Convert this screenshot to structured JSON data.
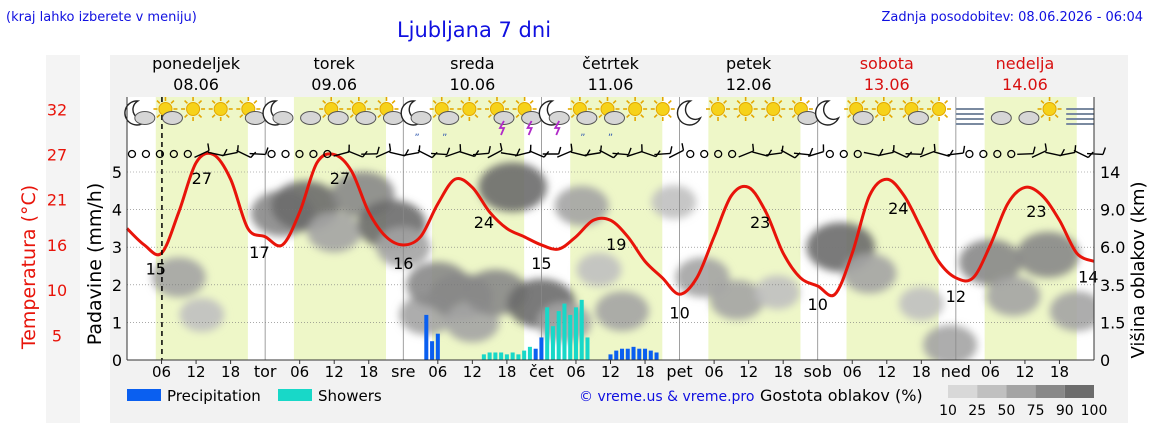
{
  "header": {
    "left_note": "(kraj lahko izberete v meniju)",
    "title": "Ljubljana 7 dni",
    "updated": "Zadnja posodobitev: 08.06.2026 - 06:04"
  },
  "days": [
    {
      "name": "ponedeljek",
      "date": "08.06",
      "weekend": false,
      "abbr": ""
    },
    {
      "name": "torek",
      "date": "09.06",
      "weekend": false,
      "abbr": "tor"
    },
    {
      "name": "sreda",
      "date": "10.06",
      "weekend": false,
      "abbr": "sre"
    },
    {
      "name": "četrtek",
      "date": "11.06",
      "weekend": false,
      "abbr": "čet"
    },
    {
      "name": "petek",
      "date": "12.06",
      "weekend": false,
      "abbr": "pet"
    },
    {
      "name": "sobota",
      "date": "13.06",
      "weekend": true,
      "abbr": "sob"
    },
    {
      "name": "nedelja",
      "date": "14.06",
      "weekend": true,
      "abbr": "ned"
    }
  ],
  "hour_ticks": [
    "06",
    "12",
    "18"
  ],
  "colors": {
    "temp": "#e8140a",
    "precip": "#0a5ff0",
    "showers": "#18d8c8",
    "day_band": "#eef7c8",
    "blue_text": "#1010e0",
    "weekend": "#d81010",
    "sun": "#f6d21a",
    "cloud": "#8a8a8a"
  },
  "icons": {
    "symbols": [
      "moon-cloud-icon",
      "sun-cloud-icon",
      "sun-icon",
      "sun-icon",
      "sun-cloud-icon",
      "moon-cloud-icon",
      "cloud-icon",
      "sun-cloud-icon",
      "sun-cloud-icon",
      "sun-cloud-icon",
      "moon-rain-icon",
      "sun-rain-icon",
      "sun-icon",
      "sun-storm-icon",
      "sun-storm-icon",
      "moon-storm-icon",
      "sun-rain-icon",
      "sun-rain-icon",
      "sun-icon",
      "sun-icon",
      "moon-icon",
      "sun-icon",
      "sun-icon",
      "sun-icon",
      "sun-cloud-icon",
      "moon-icon",
      "sun-cloud-icon",
      "sun-icon",
      "sun-cloud-icon",
      "sun-icon",
      "fog-icon",
      "cloud-icon",
      "cloud-icon",
      "sun-icon",
      "fog-icon"
    ],
    "wind": [
      "calm",
      "calm",
      "calm",
      "calm",
      "calm",
      "barb",
      "barb",
      "barb",
      "barb",
      "barb",
      "calm",
      "calm",
      "calm",
      "calm",
      "calm",
      "barb",
      "barb",
      "barb",
      "barb",
      "barb",
      "barb",
      "barb",
      "barb",
      "barb",
      "barb",
      "barb",
      "barb",
      "barb",
      "barb",
      "barb",
      "barb",
      "barb",
      "barb",
      "barb",
      "barb",
      "barb",
      "barb",
      "barb",
      "barb",
      "barb",
      "calm",
      "calm",
      "calm",
      "calm",
      "barb",
      "barb",
      "barb",
      "barb",
      "barb",
      "barb",
      "calm",
      "calm",
      "calm",
      "barb",
      "barb",
      "barb",
      "barb",
      "barb",
      "barb",
      "barb",
      "calm",
      "calm",
      "calm",
      "calm",
      "barb",
      "barb",
      "barb",
      "barb",
      "barb",
      "barb"
    ]
  },
  "chart_data": {
    "type": "line",
    "x_unit": "hours from 00:00 Monday 08.06.2026",
    "temperature_series": {
      "name": "",
      "x": [
        0,
        3,
        6,
        9,
        12,
        15,
        18,
        21,
        24,
        27,
        30,
        33,
        36,
        39,
        42,
        45,
        48,
        51,
        54,
        57,
        60,
        63,
        66,
        69,
        72,
        75,
        78,
        81,
        84,
        87,
        90,
        93,
        96,
        99,
        102,
        105,
        108,
        111,
        114,
        117,
        120,
        123,
        126,
        129,
        132,
        135,
        138,
        141,
        144,
        147,
        150,
        153,
        156,
        159,
        162,
        165,
        168
      ],
      "values": [
        18,
        16,
        15,
        20,
        26,
        27,
        24,
        18,
        17,
        16,
        20,
        26,
        27,
        25,
        20,
        17,
        16,
        17,
        21,
        24,
        23,
        20,
        18,
        17,
        16,
        15.5,
        17,
        19,
        19,
        17,
        14,
        12,
        10,
        12,
        17,
        22,
        23,
        20,
        15,
        12,
        11,
        10,
        15,
        22,
        24,
        22,
        18,
        14,
        12,
        12,
        16,
        21,
        23,
        22,
        19,
        15,
        14
      ],
      "labels": [
        {
          "x": 5,
          "text": "15"
        },
        {
          "x": 23,
          "text": "17"
        },
        {
          "x": 13,
          "text": "27"
        },
        {
          "x": 37,
          "text": "27"
        },
        {
          "x": 48,
          "text": "16"
        },
        {
          "x": 62,
          "text": "24"
        },
        {
          "x": 72,
          "text": "15"
        },
        {
          "x": 85,
          "text": "19"
        },
        {
          "x": 96,
          "text": "10"
        },
        {
          "x": 110,
          "text": "23"
        },
        {
          "x": 120,
          "text": "10"
        },
        {
          "x": 134,
          "text": "24"
        },
        {
          "x": 144,
          "text": "12"
        },
        {
          "x": 158,
          "text": "23"
        },
        {
          "x": 167,
          "text": "14"
        }
      ]
    },
    "precipitation": [
      {
        "x": 52,
        "value": 1.2,
        "type": "precipitation"
      },
      {
        "x": 53,
        "value": 0.5,
        "type": "precipitation"
      },
      {
        "x": 54,
        "value": 0.7,
        "type": "precipitation"
      },
      {
        "x": 62,
        "value": 0.15,
        "type": "showers"
      },
      {
        "x": 63,
        "value": 0.2,
        "type": "showers"
      },
      {
        "x": 64,
        "value": 0.2,
        "type": "showers"
      },
      {
        "x": 65,
        "value": 0.2,
        "type": "showers"
      },
      {
        "x": 66,
        "value": 0.15,
        "type": "showers"
      },
      {
        "x": 67,
        "value": 0.2,
        "type": "showers"
      },
      {
        "x": 68,
        "value": 0.15,
        "type": "showers"
      },
      {
        "x": 69,
        "value": 0.25,
        "type": "showers"
      },
      {
        "x": 70,
        "value": 0.35,
        "type": "showers"
      },
      {
        "x": 71,
        "value": 0.3,
        "type": "precipitation"
      },
      {
        "x": 72,
        "value": 0.6,
        "type": "precipitation"
      },
      {
        "x": 73,
        "value": 1.4,
        "type": "showers"
      },
      {
        "x": 74,
        "value": 0.9,
        "type": "showers"
      },
      {
        "x": 75,
        "value": 1.3,
        "type": "showers"
      },
      {
        "x": 76,
        "value": 1.5,
        "type": "showers"
      },
      {
        "x": 77,
        "value": 1.2,
        "type": "showers"
      },
      {
        "x": 78,
        "value": 1.4,
        "type": "showers"
      },
      {
        "x": 79,
        "value": 1.6,
        "type": "showers"
      },
      {
        "x": 80,
        "value": 0.6,
        "type": "showers"
      },
      {
        "x": 84,
        "value": 0.15,
        "type": "precipitation"
      },
      {
        "x": 85,
        "value": 0.25,
        "type": "precipitation"
      },
      {
        "x": 86,
        "value": 0.3,
        "type": "precipitation"
      },
      {
        "x": 87,
        "value": 0.3,
        "type": "precipitation"
      },
      {
        "x": 88,
        "value": 0.35,
        "type": "precipitation"
      },
      {
        "x": 89,
        "value": 0.3,
        "type": "precipitation"
      },
      {
        "x": 90,
        "value": 0.3,
        "type": "precipitation"
      },
      {
        "x": 91,
        "value": 0.25,
        "type": "precipitation"
      },
      {
        "x": 92,
        "value": 0.2,
        "type": "precipitation"
      }
    ],
    "cloud_blobs": [
      {
        "x": 9,
        "y": 2.2,
        "density": 50
      },
      {
        "x": 13,
        "y": 1.2,
        "density": 25
      },
      {
        "x": 27,
        "y": 3.9,
        "density": 75
      },
      {
        "x": 31,
        "y": 4.1,
        "density": 90
      },
      {
        "x": 36,
        "y": 3.4,
        "density": 50
      },
      {
        "x": 41,
        "y": 4.4,
        "density": 75
      },
      {
        "x": 46,
        "y": 3.6,
        "density": 90
      },
      {
        "x": 48,
        "y": 3.0,
        "density": 50
      },
      {
        "x": 52,
        "y": 1.2,
        "density": 50
      },
      {
        "x": 54,
        "y": 2.0,
        "density": 75
      },
      {
        "x": 58,
        "y": 1.7,
        "density": 75
      },
      {
        "x": 60,
        "y": 1.0,
        "density": 50
      },
      {
        "x": 64,
        "y": 1.8,
        "density": 75
      },
      {
        "x": 67,
        "y": 4.6,
        "density": 90
      },
      {
        "x": 72,
        "y": 1.5,
        "density": 90
      },
      {
        "x": 76,
        "y": 1.0,
        "density": 50
      },
      {
        "x": 79,
        "y": 4.1,
        "density": 50
      },
      {
        "x": 82,
        "y": 2.4,
        "density": 25
      },
      {
        "x": 86,
        "y": 1.3,
        "density": 50
      },
      {
        "x": 95,
        "y": 4.2,
        "density": 25
      },
      {
        "x": 100,
        "y": 2.2,
        "density": 50
      },
      {
        "x": 106,
        "y": 1.6,
        "density": 50
      },
      {
        "x": 113,
        "y": 1.8,
        "density": 25
      },
      {
        "x": 124,
        "y": 3.0,
        "density": 90
      },
      {
        "x": 129,
        "y": 2.3,
        "density": 50
      },
      {
        "x": 138,
        "y": 1.5,
        "density": 25
      },
      {
        "x": 143,
        "y": 0.4,
        "density": 50
      },
      {
        "x": 150,
        "y": 2.6,
        "density": 75
      },
      {
        "x": 154,
        "y": 1.7,
        "density": 50
      },
      {
        "x": 160,
        "y": 2.8,
        "density": 75
      },
      {
        "x": 165,
        "y": 1.3,
        "density": 50
      }
    ],
    "current_time_x": 6.07,
    "left_axis": {
      "label": "Padavine (mm/h)",
      "range": [
        0,
        5
      ],
      "ticks": [
        0,
        1,
        2,
        3,
        4,
        5
      ]
    },
    "temp_axis": {
      "label": "Temperatura (°C)",
      "range": [
        2,
        34
      ],
      "ticks": [
        "5",
        "10",
        "16",
        "21",
        "27",
        "32"
      ],
      "tick_values": [
        5,
        10.5,
        16,
        21.5,
        27,
        32.5
      ]
    },
    "right_axis": {
      "label": "Višina oblakov (km)",
      "ticks": [
        "0",
        "1.5",
        "3.5",
        "6.0",
        "9.0",
        "14"
      ],
      "tick_positions": [
        0,
        1,
        2,
        3,
        4,
        5
      ]
    },
    "legend": [
      {
        "name": "Precipitation",
        "color": "#0a5ff0"
      },
      {
        "name": "Showers",
        "color": "#18d8c8"
      }
    ],
    "credit": "© vreme.us & vreme.pro",
    "cloud_scale": {
      "label": "Gostota oblakov (%)",
      "ticks": [
        "10",
        "25",
        "50",
        "75",
        "90",
        "100"
      ],
      "grays": [
        "#d8d8d8",
        "#c0c0c0",
        "#a4a4a4",
        "#888888",
        "#6c6c6c"
      ]
    },
    "grid": true,
    "legend_position": "bottom-left"
  }
}
